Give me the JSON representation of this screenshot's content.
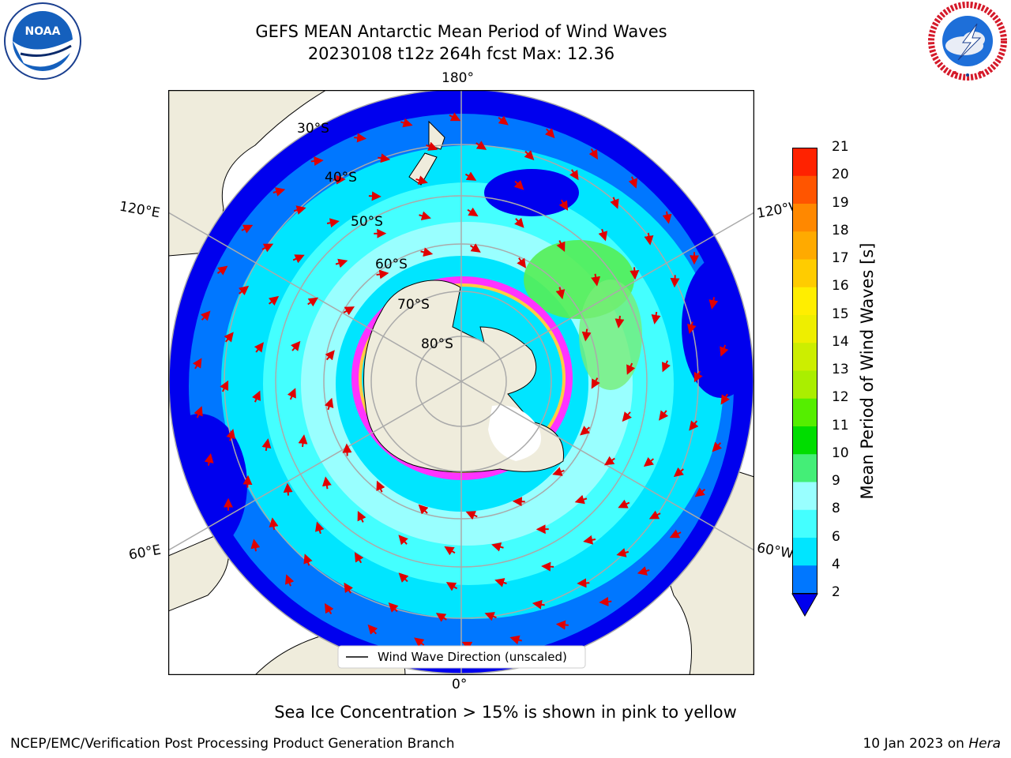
{
  "header": {
    "title_line1": "GEFS MEAN Antarctic Mean Period of Wind Waves",
    "title_line2": "20230108 t12z 264h fcst   Max: 12.36"
  },
  "logos": {
    "left": {
      "name": "noaa-logo",
      "text": "NOAA",
      "ring_text": "NATIONAL OCEANIC AND ATMOSPHERIC ADMINISTRATION · U.S. DEPARTMENT OF COMMERCE"
    },
    "right": {
      "name": "nws-logo",
      "ring_text": "NATIONAL WEATHER SERVICE"
    }
  },
  "map": {
    "projection": "south polar stereographic",
    "lon_labels": {
      "top": "180°",
      "bottom": "0°",
      "left_upper": "120°E",
      "left_lower": "60°E",
      "right_upper": "120°W",
      "right_lower": "60°W"
    },
    "lat_labels": [
      "30°S",
      "40°S",
      "50°S",
      "60°S",
      "70°S",
      "80°S"
    ],
    "legend": "Wind Wave Direction (unscaled)",
    "colors": {
      "land": "#efecdc",
      "ice_edge": "#ff33ff",
      "arrow": "#e00000",
      "grid": "#aaaaaa"
    }
  },
  "colorbar": {
    "label": "Mean Period of Wind Waves [s]",
    "ticks": [
      "2",
      "4",
      "6",
      "8",
      "9",
      "10",
      "11",
      "12",
      "13",
      "14",
      "15",
      "16",
      "17",
      "18",
      "19",
      "20",
      "21"
    ],
    "colors": [
      "#0077ff",
      "#00e5ff",
      "#44ffff",
      "#99ffff",
      "#44ee77",
      "#00dd00",
      "#55ee00",
      "#aaee00",
      "#ccee00",
      "#eeee00",
      "#ffee00",
      "#ffcc00",
      "#ffaa00",
      "#ff8800",
      "#ff5500",
      "#ff2200"
    ],
    "under_color": "#0000ee"
  },
  "caption": "Sea Ice Concentration > 15% is shown in pink to yellow",
  "footer": {
    "left": "NCEP/EMC/Verification Post Processing Product Generation Branch",
    "date": "10 Jan 2023 on ",
    "machine": "Hera"
  }
}
